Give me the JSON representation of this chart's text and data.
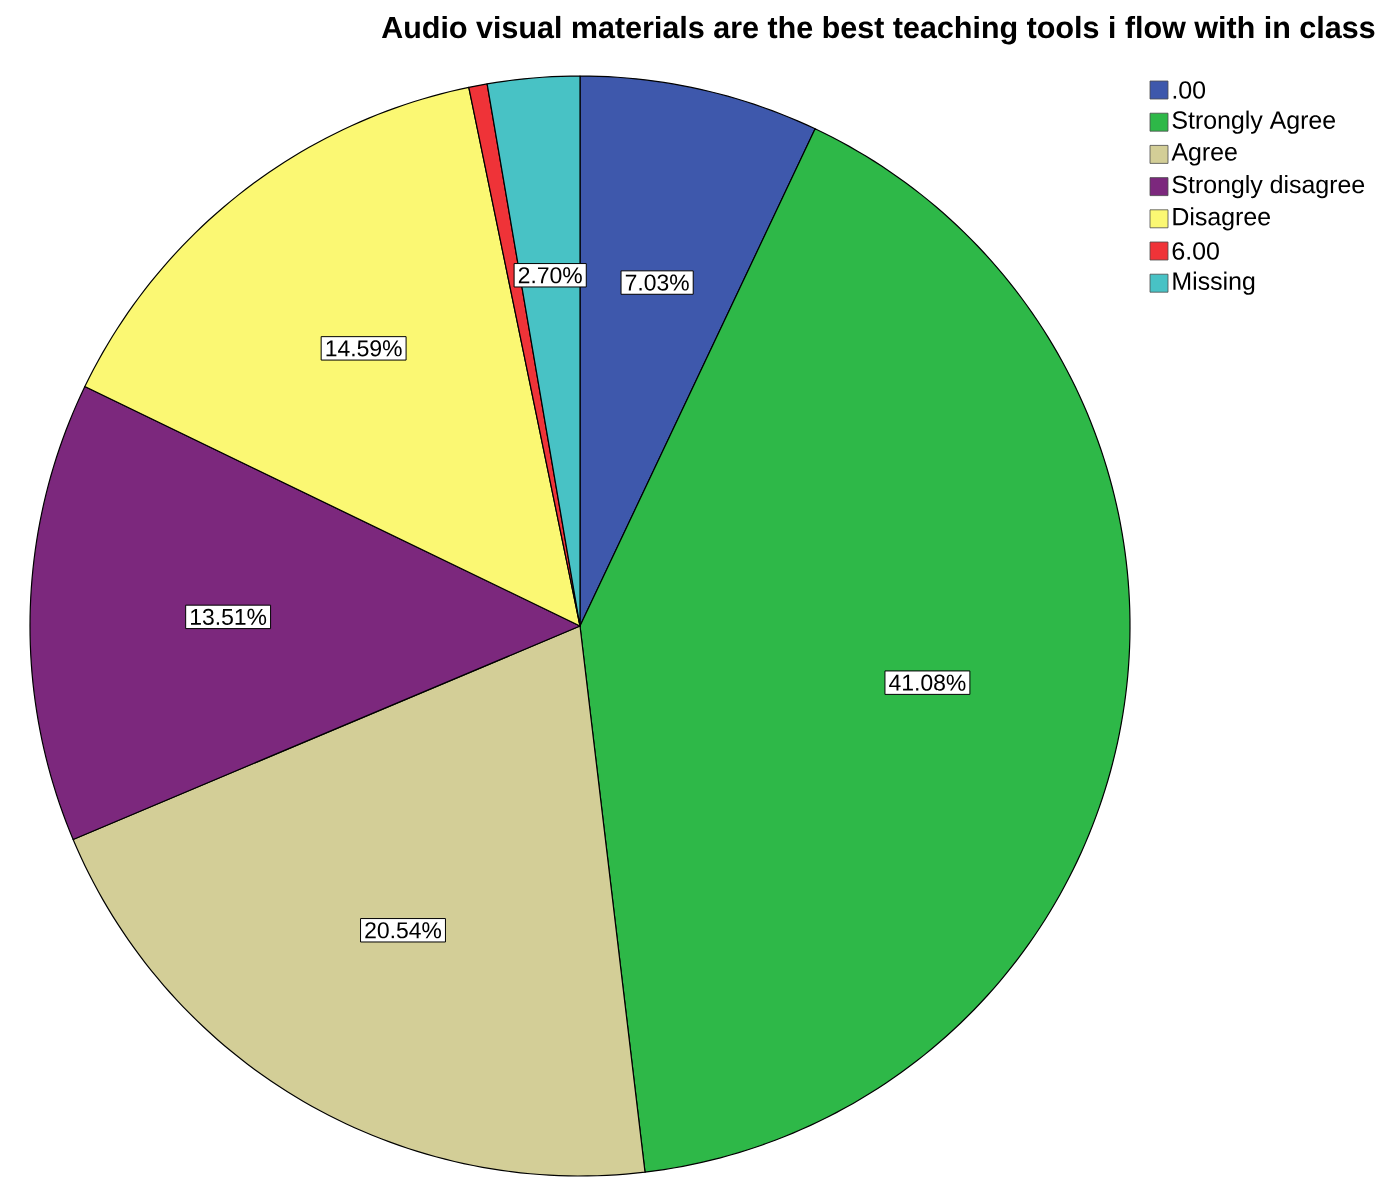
{
  "chart_data": {
    "type": "pie",
    "title": "Audio visual materials are the best teaching tools i flow with in class",
    "categories": [
      ".00",
      "Strongly Agree",
      "Agree",
      "Strongly disagree",
      "Disagree",
      "6.00",
      "Missing"
    ],
    "values": [
      7.03,
      41.08,
      20.54,
      13.51,
      14.59,
      0.54,
      2.7
    ],
    "colors": [
      "#3e58ac",
      "#2eb848",
      "#d3ce97",
      "#7c287d",
      "#fbf873",
      "#ef3338",
      "#48c2c5"
    ],
    "value_labels": [
      "7.03%",
      "41.08%",
      "20.54%",
      "13.51%",
      "14.59%",
      null,
      "2.70%"
    ],
    "legend": "top right"
  }
}
